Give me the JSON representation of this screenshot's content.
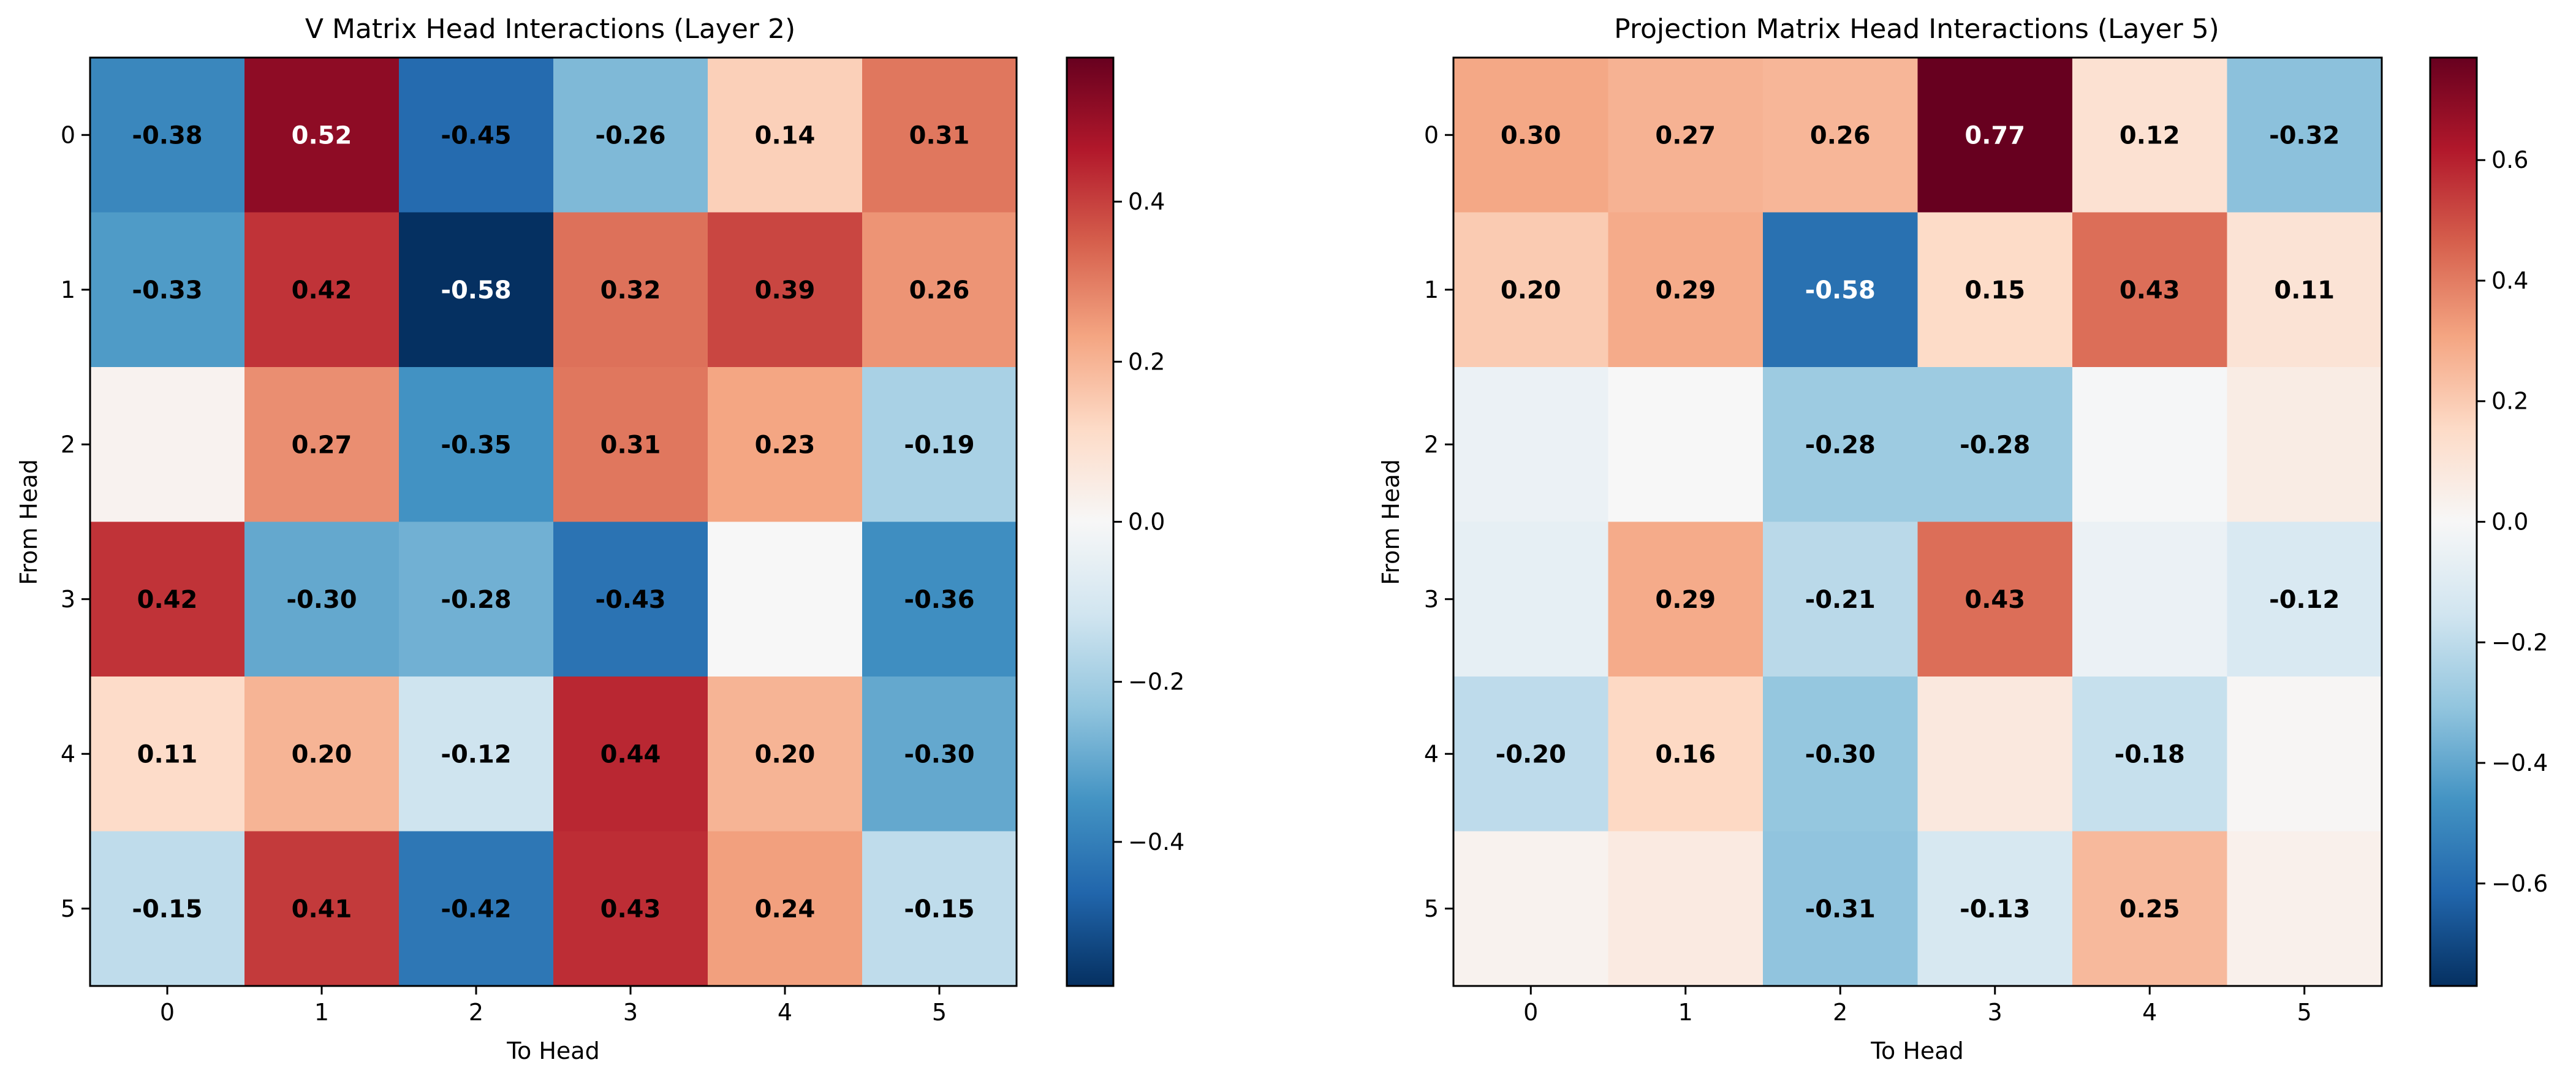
{
  "chart_data": [
    {
      "type": "heatmap",
      "title": "V Matrix Head Interactions (Layer 2)",
      "xlabel": "To Head",
      "ylabel": "From Head",
      "x_ticks": [
        "0",
        "1",
        "2",
        "3",
        "4",
        "5"
      ],
      "y_ticks": [
        "0",
        "1",
        "2",
        "3",
        "4",
        "5"
      ],
      "values": [
        [
          -0.38,
          0.52,
          -0.45,
          -0.26,
          0.14,
          0.31
        ],
        [
          -0.33,
          0.42,
          -0.58,
          0.32,
          0.39,
          0.26
        ],
        [
          0.02,
          0.27,
          -0.35,
          0.31,
          0.23,
          -0.19
        ],
        [
          0.42,
          -0.3,
          -0.28,
          -0.43,
          0.0,
          -0.36
        ],
        [
          0.11,
          0.2,
          -0.12,
          0.44,
          0.2,
          -0.3
        ],
        [
          -0.15,
          0.41,
          -0.42,
          0.43,
          0.24,
          -0.15
        ]
      ],
      "labels": [
        [
          "-0.38",
          "0.52",
          "-0.45",
          "-0.26",
          "0.14",
          "0.31"
        ],
        [
          "-0.33",
          "0.42",
          "-0.58",
          "0.32",
          "0.39",
          "0.26"
        ],
        [
          "",
          "0.27",
          "-0.35",
          "0.31",
          "0.23",
          "-0.19"
        ],
        [
          "0.42",
          "-0.30",
          "-0.28",
          "-0.43",
          "",
          "-0.36"
        ],
        [
          "0.11",
          "0.20",
          "-0.12",
          "0.44",
          "0.20",
          "-0.30"
        ],
        [
          "-0.15",
          "0.41",
          "-0.42",
          "0.43",
          "0.24",
          "-0.15"
        ]
      ],
      "colormap": "RdBu_r",
      "color_range": [
        -0.58,
        0.58
      ],
      "colorbar_ticks": [
        -0.4,
        -0.2,
        0.0,
        0.2,
        0.4
      ],
      "colorbar_tick_labels": [
        "−0.4",
        "−0.2",
        "0.0",
        "0.2",
        "0.4"
      ]
    },
    {
      "type": "heatmap",
      "title": "Projection Matrix Head Interactions (Layer 5)",
      "xlabel": "To Head",
      "ylabel": "From Head",
      "x_ticks": [
        "0",
        "1",
        "2",
        "3",
        "4",
        "5"
      ],
      "y_ticks": [
        "0",
        "1",
        "2",
        "3",
        "4",
        "5"
      ],
      "values": [
        [
          0.3,
          0.27,
          0.26,
          0.77,
          0.12,
          -0.32
        ],
        [
          0.2,
          0.29,
          -0.58,
          0.15,
          0.43,
          0.11
        ],
        [
          -0.05,
          0.0,
          -0.28,
          -0.28,
          -0.01,
          0.06
        ],
        [
          -0.07,
          0.29,
          -0.21,
          0.43,
          -0.05,
          -0.12
        ],
        [
          -0.2,
          0.16,
          -0.3,
          0.08,
          -0.18,
          0.01
        ],
        [
          0.03,
          0.07,
          -0.31,
          -0.13,
          0.25,
          0.04
        ]
      ],
      "labels": [
        [
          "0.30",
          "0.27",
          "0.26",
          "0.77",
          "0.12",
          "-0.32"
        ],
        [
          "0.20",
          "0.29",
          "-0.58",
          "0.15",
          "0.43",
          "0.11"
        ],
        [
          "",
          "",
          "-0.28",
          "-0.28",
          "",
          ""
        ],
        [
          "",
          "0.29",
          "-0.21",
          "0.43",
          "",
          "-0.12"
        ],
        [
          "-0.20",
          "0.16",
          "-0.30",
          "",
          "-0.18",
          ""
        ],
        [
          "",
          "",
          "-0.31",
          "-0.13",
          "0.25",
          ""
        ]
      ],
      "colormap": "RdBu_r",
      "color_range": [
        -0.77,
        0.77
      ],
      "colorbar_ticks": [
        -0.6,
        -0.4,
        -0.2,
        0.0,
        0.2,
        0.4,
        0.6
      ],
      "colorbar_tick_labels": [
        "−0.6",
        "−0.4",
        "−0.2",
        "0.0",
        "0.2",
        "0.4",
        "0.6"
      ]
    }
  ]
}
